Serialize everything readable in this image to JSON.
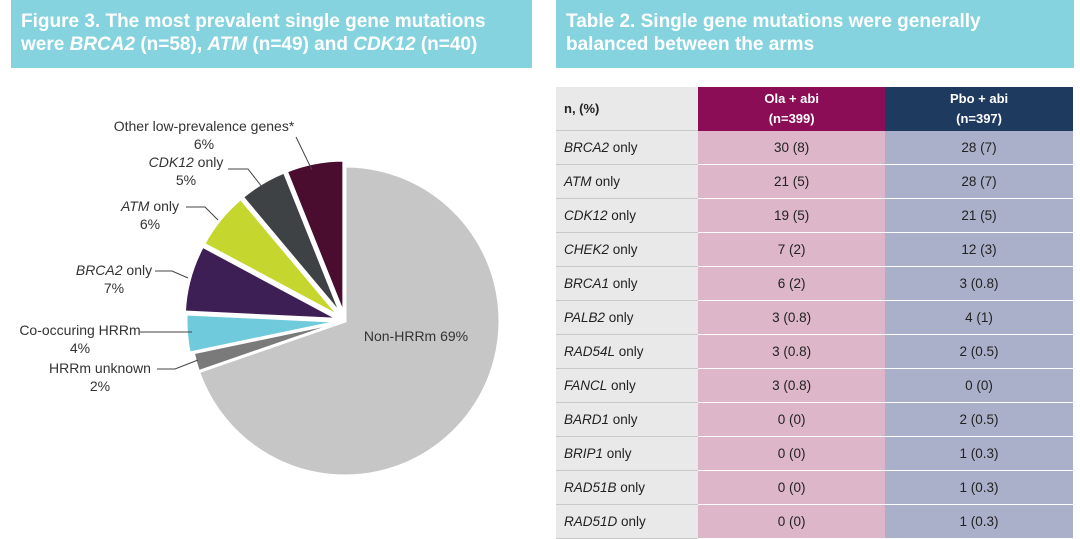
{
  "figure": {
    "title_line1": "Figure 3. The most prevalent single gene mutations",
    "title_line2_parts": [
      "were ",
      "BRCA2",
      " (n=58), ",
      "ATM",
      " (n=49) and ",
      "CDK12",
      " (n=40)"
    ]
  },
  "table": {
    "title_line1": "Table 2. Single gene mutations were generally",
    "title_line2": "balanced between the arms",
    "header": {
      "col0": "n, (%)",
      "col1_name": "Ola + abi",
      "col1_n": "(n=399)",
      "col2_name": "Pbo + abi",
      "col2_n": "(n=397)"
    },
    "rows": [
      {
        "gene": "BRCA2",
        "suffix": " only",
        "ola": "30 (8)",
        "pbo": "28 (7)"
      },
      {
        "gene": "ATM",
        "suffix": " only",
        "ola": "21 (5)",
        "pbo": "28 (7)"
      },
      {
        "gene": "CDK12",
        "suffix": " only",
        "ola": "19 (5)",
        "pbo": "21 (5)"
      },
      {
        "gene": "CHEK2",
        "suffix": " only",
        "ola": "7 (2)",
        "pbo": "12 (3)"
      },
      {
        "gene": "BRCA1",
        "suffix": " only",
        "ola": "6 (2)",
        "pbo": "3 (0.8)"
      },
      {
        "gene": "PALB2",
        "suffix": " only",
        "ola": "3 (0.8)",
        "pbo": "4 (1)"
      },
      {
        "gene": "RAD54L",
        "suffix": " only",
        "ola": "3 (0.8)",
        "pbo": "2 (0.5)"
      },
      {
        "gene": "FANCL",
        "suffix": " only",
        "ola": "3 (0.8)",
        "pbo": "0 (0)"
      },
      {
        "gene": "BARD1",
        "suffix": " only",
        "ola": "0 (0)",
        "pbo": "2 (0.5)"
      },
      {
        "gene": "BRIP1",
        "suffix": " only",
        "ola": "0 (0)",
        "pbo": "1 (0.3)"
      },
      {
        "gene": "RAD51B",
        "suffix": " only",
        "ola": "0 (0)",
        "pbo": "1 (0.3)"
      },
      {
        "gene": "RAD51D",
        "suffix": " only",
        "ola": "0 (0)",
        "pbo": "1 (0.3)"
      }
    ],
    "colors": {
      "ola_header": "#8a0d55",
      "pbo_header": "#1f3a5f",
      "ola_cell": "#ddb6c9",
      "pbo_cell": "#aab0c9"
    }
  },
  "chart_data": {
    "type": "pie",
    "slices": [
      {
        "label": "Non-HRRm",
        "value": 69,
        "value_text": "69%",
        "color": "#c6c6c6"
      },
      {
        "label": "HRRm unknown",
        "value": 2,
        "value_text": "2%",
        "color": "#7a7a7a"
      },
      {
        "label": "Co-occuring HRRm",
        "value": 4,
        "value_text": "4%",
        "color": "#6fcbdc"
      },
      {
        "gene": "BRCA2",
        "label": " only",
        "value": 7,
        "value_text": "7%",
        "color": "#3e1f55"
      },
      {
        "gene": "ATM",
        "label": " only",
        "value": 6,
        "value_text": "6%",
        "color": "#c5d62e"
      },
      {
        "gene": "CDK12",
        "label": " only",
        "value": 5,
        "value_text": "5%",
        "color": "#3f4244"
      },
      {
        "label": "Other low-prevalence genes*",
        "value": 6,
        "value_text": "6%",
        "color": "#4a0d30"
      }
    ]
  }
}
